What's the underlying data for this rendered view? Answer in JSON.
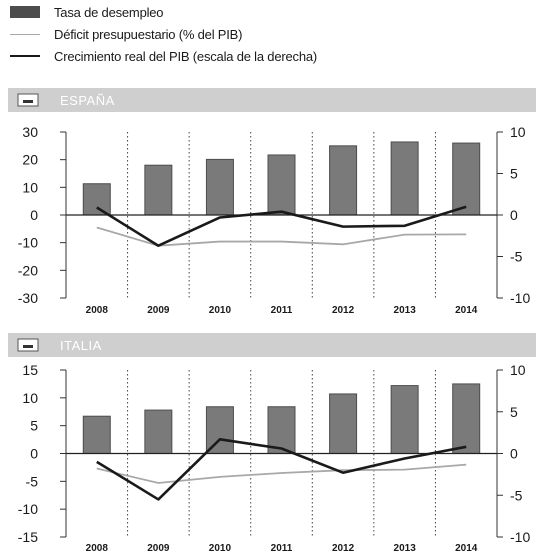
{
  "legend": {
    "unemployment": "Tasa de desempleo",
    "deficit": "Déficit presupuestario (% del PIB)",
    "gdp": "Crecimiento real del PIB (escala de la derecha)"
  },
  "colors": {
    "bar": "#7a7a7a",
    "bar_dark": "#4d4d4d",
    "deficit_line": "#a8a8a8",
    "gdp_line": "#1a1a1a",
    "header_bg": "#cfcfcf",
    "header_text": "#ffffff",
    "grid": "#444444",
    "axis": "#333333"
  },
  "chart_data": [
    {
      "type": "bar",
      "title": "ESPAÑA",
      "categories": [
        "2008",
        "2009",
        "2010",
        "2011",
        "2012",
        "2013",
        "2014"
      ],
      "left_ticks": [
        "30",
        "20",
        "10",
        "0",
        "-10",
        "-20",
        "-30"
      ],
      "right_ticks": [
        "10",
        "5",
        "0",
        "-5",
        "-10"
      ],
      "ylim": [
        -30,
        30
      ],
      "y2lim": [
        -10,
        10
      ],
      "series": [
        {
          "name": "Tasa de desempleo",
          "kind": "bar",
          "axis": "left",
          "values": [
            11.3,
            18.0,
            20.1,
            21.7,
            25.0,
            26.4,
            26.0
          ]
        },
        {
          "name": "Déficit presupuestario (% del PIB)",
          "kind": "line",
          "axis": "left",
          "values": [
            -4.5,
            -11.1,
            -9.6,
            -9.6,
            -10.6,
            -7.1,
            -7.0
          ]
        },
        {
          "name": "Crecimiento real del PIB (escala de la derecha)",
          "kind": "line",
          "axis": "right",
          "values": [
            0.9,
            -3.7,
            -0.3,
            0.4,
            -1.4,
            -1.3,
            1.0
          ]
        }
      ]
    },
    {
      "type": "bar",
      "title": "ITALIA",
      "categories": [
        "2008",
        "2009",
        "2010",
        "2011",
        "2012",
        "2013",
        "2014"
      ],
      "left_ticks": [
        "15",
        "10",
        "5",
        "0",
        "-5",
        "-10",
        "-15"
      ],
      "right_ticks": [
        "10",
        "5",
        "0",
        "-5",
        "-10"
      ],
      "ylim": [
        -15,
        15
      ],
      "y2lim": [
        -10,
        10
      ],
      "series": [
        {
          "name": "Tasa de desempleo",
          "kind": "bar",
          "axis": "left",
          "values": [
            6.7,
            7.8,
            8.4,
            8.4,
            10.7,
            12.2,
            12.5
          ]
        },
        {
          "name": "Déficit presupuestario (% del PIB)",
          "kind": "line",
          "axis": "left",
          "values": [
            -2.7,
            -5.3,
            -4.2,
            -3.5,
            -3.0,
            -2.9,
            -2.0
          ]
        },
        {
          "name": "Crecimiento real del PIB (escala de la derecha)",
          "kind": "line",
          "axis": "right",
          "values": [
            -1.0,
            -5.5,
            1.7,
            0.6,
            -2.3,
            -0.6,
            0.8
          ]
        }
      ]
    }
  ]
}
